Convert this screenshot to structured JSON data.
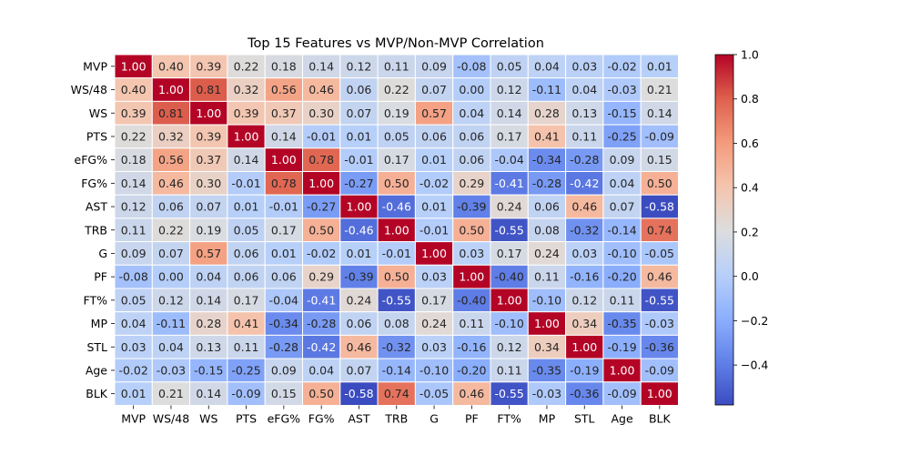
{
  "chart_data": {
    "type": "heatmap",
    "title": "Top 15 Features vs MVP/Non-MVP Correlation",
    "labels": [
      "MVP",
      "WS/48",
      "WS",
      "PTS",
      "eFG%",
      "FG%",
      "AST",
      "TRB",
      "G",
      "PF",
      "FT%",
      "MP",
      "STL",
      "Age",
      "BLK"
    ],
    "values": [
      [
        1.0,
        0.4,
        0.39,
        0.22,
        0.18,
        0.14,
        0.12,
        0.11,
        0.09,
        -0.08,
        0.05,
        0.04,
        0.03,
        -0.02,
        0.01
      ],
      [
        0.4,
        1.0,
        0.81,
        0.32,
        0.56,
        0.46,
        0.06,
        0.22,
        0.07,
        0.0,
        0.12,
        -0.11,
        0.04,
        -0.03,
        0.21
      ],
      [
        0.39,
        0.81,
        1.0,
        0.39,
        0.37,
        0.3,
        0.07,
        0.19,
        0.57,
        0.04,
        0.14,
        0.28,
        0.13,
        -0.15,
        0.14
      ],
      [
        0.22,
        0.32,
        0.39,
        1.0,
        0.14,
        -0.01,
        0.01,
        0.05,
        0.06,
        0.06,
        0.17,
        0.41,
        0.11,
        -0.25,
        -0.09
      ],
      [
        0.18,
        0.56,
        0.37,
        0.14,
        1.0,
        0.78,
        -0.01,
        0.17,
        0.01,
        0.06,
        -0.04,
        -0.34,
        -0.28,
        0.09,
        0.15
      ],
      [
        0.14,
        0.46,
        0.3,
        -0.01,
        0.78,
        1.0,
        -0.27,
        0.5,
        -0.02,
        0.29,
        -0.41,
        -0.28,
        -0.42,
        0.04,
        0.5
      ],
      [
        0.12,
        0.06,
        0.07,
        0.01,
        -0.01,
        -0.27,
        1.0,
        -0.46,
        0.01,
        -0.39,
        0.24,
        0.06,
        0.46,
        0.07,
        -0.58
      ],
      [
        0.11,
        0.22,
        0.19,
        0.05,
        0.17,
        0.5,
        -0.46,
        1.0,
        -0.01,
        0.5,
        -0.55,
        0.08,
        -0.32,
        -0.14,
        0.74
      ],
      [
        0.09,
        0.07,
        0.57,
        0.06,
        0.01,
        -0.02,
        0.01,
        -0.01,
        1.0,
        0.03,
        0.17,
        0.24,
        0.03,
        -0.1,
        -0.05
      ],
      [
        -0.08,
        0.0,
        0.04,
        0.06,
        0.06,
        0.29,
        -0.39,
        0.5,
        0.03,
        1.0,
        -0.4,
        0.11,
        -0.16,
        -0.2,
        0.46
      ],
      [
        0.05,
        0.12,
        0.14,
        0.17,
        -0.04,
        -0.41,
        0.24,
        -0.55,
        0.17,
        -0.4,
        1.0,
        -0.1,
        0.12,
        0.11,
        -0.55
      ],
      [
        0.04,
        -0.11,
        0.28,
        0.41,
        -0.34,
        -0.28,
        0.06,
        0.08,
        0.24,
        0.11,
        -0.1,
        1.0,
        0.34,
        -0.35,
        -0.03
      ],
      [
        0.03,
        0.04,
        0.13,
        0.11,
        -0.28,
        -0.42,
        0.46,
        -0.32,
        0.03,
        -0.16,
        0.12,
        0.34,
        1.0,
        -0.19,
        -0.36
      ],
      [
        -0.02,
        -0.03,
        -0.15,
        -0.25,
        0.09,
        0.04,
        0.07,
        -0.14,
        -0.1,
        -0.2,
        0.11,
        -0.35,
        -0.19,
        1.0,
        -0.09
      ],
      [
        0.01,
        0.21,
        0.14,
        -0.09,
        0.15,
        0.5,
        -0.58,
        0.74,
        -0.05,
        0.46,
        -0.55,
        -0.03,
        -0.36,
        -0.09,
        1.0
      ]
    ],
    "colormap": "coolwarm",
    "color_range": [
      -0.58,
      1.0
    ],
    "colorbar_ticks": [
      1.0,
      0.8,
      0.6,
      0.4,
      0.2,
      0.0,
      -0.2,
      -0.4
    ],
    "colorbar_tick_labels": [
      "1.0",
      "0.8",
      "0.6",
      "0.4",
      "0.2",
      "0.0",
      "−0.2",
      "−0.4"
    ],
    "annotations": "two-decimal values in each cell",
    "grid": false,
    "legend": "colorbar-right"
  }
}
